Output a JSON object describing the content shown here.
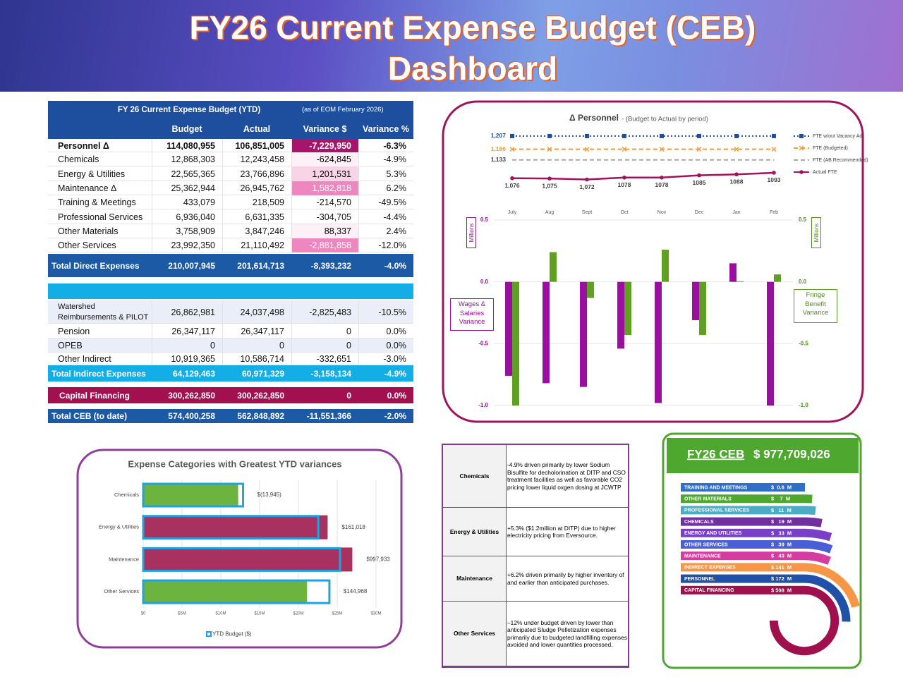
{
  "title": "FY26 Current Expense Budget (CEB) Dashboard",
  "table": {
    "title": "FY 26 Current Expense Budget (YTD)",
    "note": "(as of EOM February 2026)",
    "columns": [
      "Budget",
      "Actual",
      "Variance $",
      "Variance %"
    ],
    "rows": [
      [
        "Personnel  Δ",
        "114,080,955",
        "106,851,005",
        "-7,229,950",
        "-6.3%"
      ],
      [
        "Chemicals",
        "12,868,303",
        "12,243,458",
        "-624,845",
        "-4.9%"
      ],
      [
        "Energy & Utilities",
        "22,565,365",
        "23,766,896",
        "1,201,531",
        "5.3%"
      ],
      [
        "Maintenance  Δ",
        "25,362,944",
        "26,945,762",
        "1,582,818",
        "6.2%"
      ],
      [
        "Training & Meetings",
        "433,079",
        "218,509",
        "-214,570",
        "-49.5%"
      ],
      [
        "Professional Services",
        "6,936,040",
        "6,631,335",
        "-304,705",
        "-4.4%"
      ],
      [
        "Other Materials",
        "3,758,909",
        "3,847,246",
        "88,337",
        "2.4%"
      ],
      [
        "Other Services",
        "23,992,350",
        "21,110,492",
        "-2,881,858",
        "-12.0%"
      ],
      [
        "Total Direct Expenses",
        "210,007,945",
        "201,614,713",
        "-8,393,232",
        "-4.0%"
      ],
      [
        "Watershed Reimbursements & PILOT",
        "26,862,981",
        "24,037,498",
        "-2,825,483",
        "-10.5%"
      ],
      [
        "Pension",
        "26,347,117",
        "26,347,117",
        "0",
        "0.0%"
      ],
      [
        "OPEB",
        "0",
        "0",
        "0",
        "0.0%"
      ],
      [
        "Other Indirect",
        "10,919,365",
        "10,586,714",
        "-332,651",
        "-3.0%"
      ],
      [
        "Total Indirect Expenses",
        "64,129,463",
        "60,971,329",
        "-3,158,134",
        "-4.9%"
      ],
      [
        "Capital Financing",
        "300,262,850",
        "300,262,850",
        "0",
        "0.0%"
      ],
      [
        "Total CEB (to date)",
        "574,400,258",
        "562,848,892",
        "-11,551,366",
        "-2.0%"
      ]
    ]
  },
  "chart_data": [
    {
      "type": "line",
      "title": "Δ Personnel",
      "subtitle": "- (Budget to Actual by period)",
      "categories": [
        "July",
        "Aug",
        "Sept",
        "Oct",
        "Nov",
        "Dec",
        "Jan",
        "Feb"
      ],
      "ylim": [
        1060,
        1220
      ],
      "legend": "right",
      "series": [
        {
          "name": "FTE w/out Vacancy Adj",
          "color": "#1f4e9c",
          "dash": "dotted",
          "marker": "square",
          "values": [
            1207,
            1207,
            1207,
            1207,
            1207,
            1207,
            1207,
            1207
          ],
          "value_labels": [
            "1,207",
            null,
            null,
            null,
            null,
            null,
            null,
            null
          ]
        },
        {
          "name": "FTE (Budgeted)",
          "color": "#f39a3c",
          "dash": "dashed",
          "marker": "x",
          "values": [
            1166,
            1166,
            1166,
            1166,
            1166,
            1166,
            1166,
            1166
          ],
          "value_labels": [
            "1,166",
            null,
            null,
            null,
            null,
            null,
            null,
            null
          ]
        },
        {
          "name": "FTE (AB Recommended)",
          "color": "#a6a6a6",
          "dash": "dashed",
          "marker": "none",
          "values": [
            1133,
            1133,
            1133,
            1133,
            1133,
            1133,
            1133,
            1133
          ],
          "value_labels": [
            "1,133",
            null,
            null,
            null,
            null,
            null,
            null,
            null
          ]
        },
        {
          "name": "Actual FTE",
          "color": "#a0125c",
          "dash": "solid",
          "marker": "circle",
          "values": [
            1076,
            1075,
            1072,
            1078,
            1078,
            1085,
            1088,
            1093
          ],
          "value_labels": [
            "1,076",
            "1,075",
            "1,072",
            "1078",
            "1078",
            "1085",
            "1088",
            "1093"
          ]
        }
      ]
    },
    {
      "type": "bar",
      "ylabel": "Millions",
      "y2label": "Millions",
      "ylim": [
        -1,
        0.5
      ],
      "yticks": [
        {
          "value": -1,
          "label": "-1.0"
        },
        -0.5,
        {
          "value": 0,
          "label": "0.0"
        },
        0.5
      ],
      "y2lim": [
        -1,
        0.5
      ],
      "y2ticks": [
        {
          "value": -1,
          "label": "-1.0"
        },
        -0.5,
        {
          "value": 0,
          "label": "0.0"
        },
        0.5
      ],
      "grid": true,
      "series": [
        {
          "name": "Wages & Salaries Variance",
          "color": "#9b0fa0",
          "values": [
            -0.76,
            -0.82,
            -0.85,
            -0.54,
            -0.98,
            -0.31,
            0.15,
            -1.0
          ]
        },
        {
          "name": "Fringe Benefit Variance",
          "color": "#5fa020",
          "axis": "y2",
          "values": [
            -1.0,
            0.24,
            -0.13,
            -0.43,
            0.26,
            -0.43,
            0.005,
            0.06
          ]
        }
      ]
    },
    {
      "type": "hbar",
      "title": "Expense Categories with Greatest YTD variances",
      "categories": [
        "Chemicals",
        "Energy & Utilities",
        "Maintenance",
        "Other Services"
      ],
      "xlim": [
        0,
        30000000
      ],
      "xticks": [
        {
          "value": 0,
          "label": "$0"
        },
        {
          "value": 5000000,
          "label": "$5M"
        },
        {
          "value": 10000000,
          "label": "$10M"
        },
        {
          "value": 15000000,
          "label": "$15M"
        },
        {
          "value": 20000000,
          "label": "$20M"
        },
        {
          "value": 25000000,
          "label": "$25M"
        },
        {
          "value": 30000000,
          "label": "$30M"
        }
      ],
      "grid": true,
      "series": [
        {
          "name": "YTD Budget ($)",
          "color": "#1fa3e0",
          "values": [
            12868303,
            22565365,
            25362944,
            23992350
          ]
        },
        {
          "colors": [
            "#6db33f",
            "#a8315f",
            "#a8315f",
            "#6db33f"
          ],
          "values": [
            12243458,
            23766896,
            26945762,
            21110492
          ]
        }
      ],
      "annotations": [
        "$(13,945)",
        "$161,018",
        "$997,933",
        "$144,968"
      ]
    },
    {
      "type": "radial-bar",
      "title": "FY26 CEB",
      "subtitle": "$ 977,709,026",
      "categories": [
        "TRAINING AND MEETINGS",
        "OTHER MATERIALS",
        "PROFESSIONAL SERVICES",
        "CHEMICALS",
        "ENERGY AND UTILITIES",
        "OTHER SERVICES",
        "MAINTENANCE",
        "INDIRECT EXPENSES",
        "PERSONNEL",
        "CAPITAL FINANCING"
      ],
      "values": [
        0.6,
        7,
        11,
        19,
        33,
        39,
        43,
        141,
        172,
        508
      ],
      "value_labels": [
        "$  0.6  M",
        "$    7  M",
        "$   11  M",
        "$   19  M",
        "$   33  M",
        "$   39  M",
        "$   43  M",
        "$ 141  M",
        "$ 172  M",
        "$ 508  M"
      ],
      "colors": [
        "#2f6fc8",
        "#4ea72e",
        "#4bacc6",
        "#7030a0",
        "#7a3fc8",
        "#4a5fd6",
        "#d63ca0",
        "#f79646",
        "#2050a8",
        "#a0104c"
      ]
    }
  ],
  "notes": {
    "rows": [
      [
        "Chemicals",
        "-4.9% driven primarily by lower Sodium Bisulfite for decholorination at DITP and CSO treatment facilities as well as favorable CO2 pricing lower liquid oxgen dosing at JCWTP"
      ],
      [
        "Energy & Utilities",
        "+5.3% ($1.2million at DITP) due to higher electricity pricing from Eversource."
      ],
      [
        "Maintenance",
        "+6.2% driven primarily by higher inventory of  and earlier than anticipated purchases."
      ],
      [
        "Other Services",
        "–12% under budget driven by lower than anticipated Sludge Pelletization expenses primarily due to budgeted landfilling expenses avoided and lower quantities processed."
      ]
    ]
  }
}
